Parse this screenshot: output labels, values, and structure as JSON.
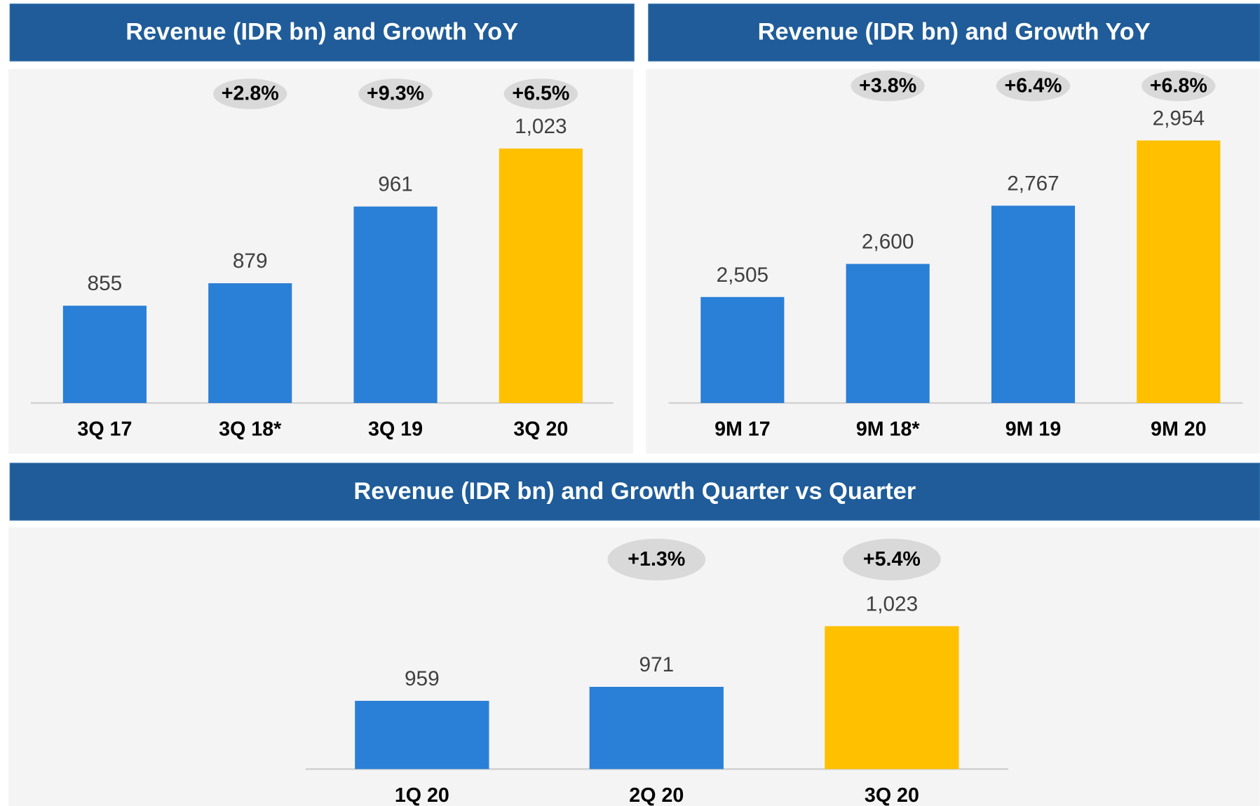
{
  "chart_data": [
    {
      "type": "bar",
      "title": "Revenue (IDR bn) and Growth YoY",
      "categories": [
        "3Q 17",
        "3Q 18*",
        "3Q 19",
        "3Q 20"
      ],
      "values": [
        855,
        879,
        961,
        1023
      ],
      "value_labels": [
        "855",
        "879",
        "961",
        "1,023"
      ],
      "annotations": [
        null,
        "+2.8%",
        "+9.3%",
        "+6.5%"
      ],
      "colors": [
        "#2a7fd6",
        "#2a7fd6",
        "#2a7fd6",
        "#ffc000"
      ],
      "ylim": [
        751,
        1023
      ]
    },
    {
      "type": "bar",
      "title": "Revenue (IDR bn) and Growth YoY",
      "categories": [
        "9M 17",
        "9M 18*",
        "9M 19",
        "9M 20"
      ],
      "values": [
        2505,
        2600,
        2767,
        2954
      ],
      "value_labels": [
        "2,505",
        "2,600",
        "2,767",
        "2,954"
      ],
      "annotations": [
        null,
        "+3.8%",
        "+6.4%",
        "+6.8%"
      ],
      "colors": [
        "#2a7fd6",
        "#2a7fd6",
        "#2a7fd6",
        "#ffc000"
      ],
      "ylim": [
        2201,
        2954
      ]
    },
    {
      "type": "bar",
      "title": "Revenue (IDR bn) and Growth Quarter vs Quarter",
      "categories": [
        "1Q 20",
        "2Q 20",
        "3Q 20"
      ],
      "values": [
        959,
        971,
        1023
      ],
      "value_labels": [
        "959",
        "971",
        "1,023"
      ],
      "annotations": [
        null,
        "+1.3%",
        "+5.4%"
      ],
      "colors": [
        "#2a7fd6",
        "#2a7fd6",
        "#ffc000"
      ],
      "ylim": [
        900.5,
        1023
      ]
    }
  ]
}
